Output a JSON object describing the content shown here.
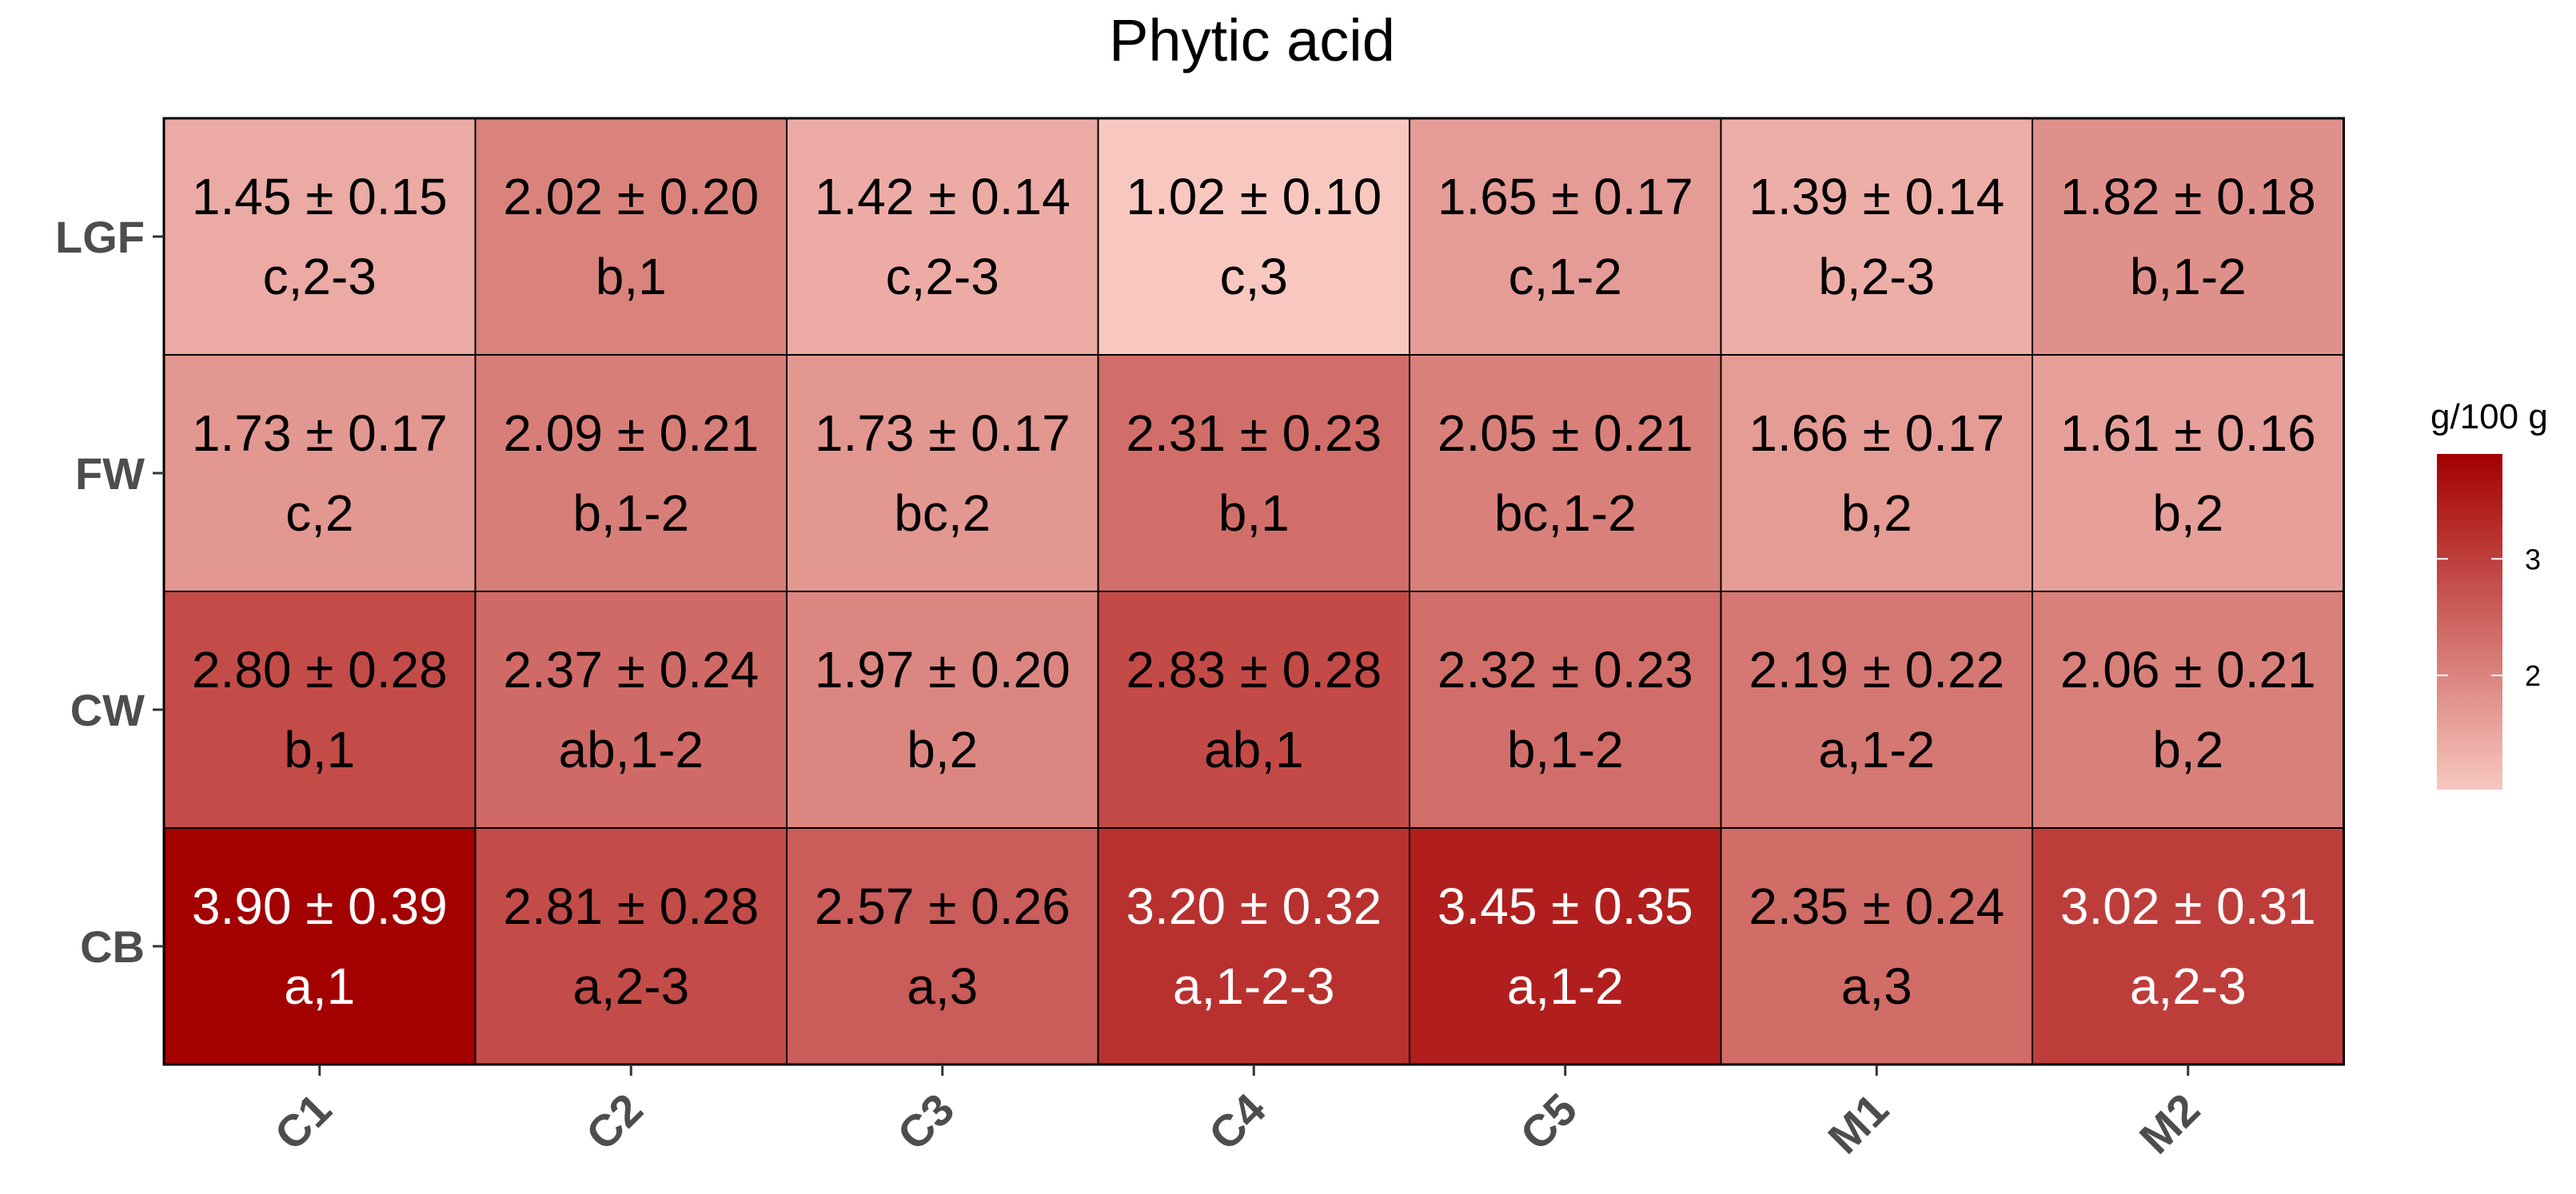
{
  "chart_data": {
    "type": "heatmap",
    "title": "Phytic acid",
    "x_categories": [
      "C1",
      "C2",
      "C3",
      "C4",
      "C5",
      "M1",
      "M2"
    ],
    "y_categories": [
      "LGF",
      "FW",
      "CW",
      "CB"
    ],
    "cells": [
      [
        {
          "value": 1.45,
          "text": "1.45 ± 0.15",
          "label": "c,2-3"
        },
        {
          "value": 2.02,
          "text": "2.02 ± 0.20",
          "label": "b,1"
        },
        {
          "value": 1.42,
          "text": "1.42 ± 0.14",
          "label": "c,2-3"
        },
        {
          "value": 1.02,
          "text": "1.02 ± 0.10",
          "label": "c,3"
        },
        {
          "value": 1.65,
          "text": "1.65 ± 0.17",
          "label": "c,1-2"
        },
        {
          "value": 1.39,
          "text": "1.39 ± 0.14",
          "label": "b,2-3"
        },
        {
          "value": 1.82,
          "text": "1.82 ± 0.18",
          "label": "b,1-2"
        }
      ],
      [
        {
          "value": 1.73,
          "text": "1.73 ± 0.17",
          "label": "c,2"
        },
        {
          "value": 2.09,
          "text": "2.09 ± 0.21",
          "label": "b,1-2"
        },
        {
          "value": 1.73,
          "text": "1.73 ± 0.17",
          "label": "bc,2"
        },
        {
          "value": 2.31,
          "text": "2.31 ± 0.23",
          "label": "b,1"
        },
        {
          "value": 2.05,
          "text": "2.05 ± 0.21",
          "label": "bc,1-2"
        },
        {
          "value": 1.66,
          "text": "1.66 ± 0.17",
          "label": "b,2"
        },
        {
          "value": 1.61,
          "text": "1.61 ± 0.16",
          "label": "b,2"
        }
      ],
      [
        {
          "value": 2.8,
          "text": "2.80 ± 0.28",
          "label": "b,1"
        },
        {
          "value": 2.37,
          "text": "2.37 ± 0.24",
          "label": "ab,1-2"
        },
        {
          "value": 1.97,
          "text": "1.97 ± 0.20",
          "label": "b,2"
        },
        {
          "value": 2.83,
          "text": "2.83 ± 0.28",
          "label": "ab,1"
        },
        {
          "value": 2.32,
          "text": "2.32 ± 0.23",
          "label": "b,1-2"
        },
        {
          "value": 2.19,
          "text": "2.19 ± 0.22",
          "label": "a,1-2"
        },
        {
          "value": 2.06,
          "text": "2.06 ± 0.21",
          "label": "b,2"
        }
      ],
      [
        {
          "value": 3.9,
          "text": "3.90 ± 0.39",
          "label": "a,1"
        },
        {
          "value": 2.81,
          "text": "2.81 ± 0.28",
          "label": "a,2-3"
        },
        {
          "value": 2.57,
          "text": "2.57 ± 0.26",
          "label": "a,3"
        },
        {
          "value": 3.2,
          "text": "3.20 ± 0.32",
          "label": "a,1-2-3"
        },
        {
          "value": 3.45,
          "text": "3.45 ± 0.35",
          "label": "a,1-2"
        },
        {
          "value": 2.35,
          "text": "2.35 ± 0.24",
          "label": "a,3"
        },
        {
          "value": 3.02,
          "text": "3.02 ± 0.31",
          "label": "a,2-3"
        }
      ]
    ],
    "value_range": [
      1.02,
      3.9
    ],
    "colorscale": {
      "low": "#f8c8c0",
      "high": "#a30000"
    },
    "label_color_threshold": 3.0,
    "legend": {
      "title": "g/100 g",
      "ticks": [
        2,
        3
      ],
      "position": "right"
    },
    "grid": false
  }
}
